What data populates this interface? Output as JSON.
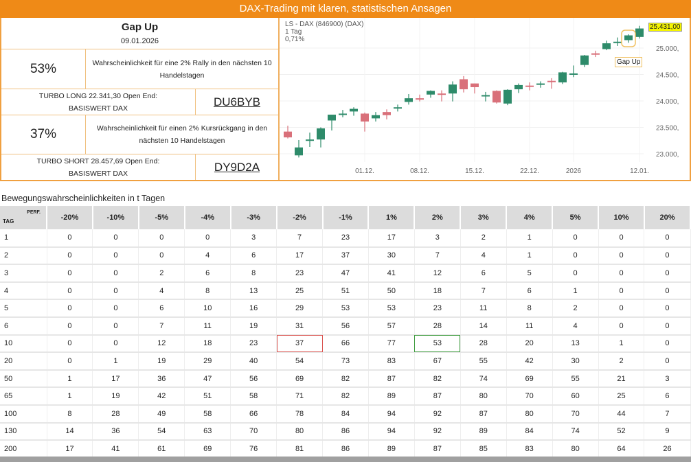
{
  "header": {
    "title": "DAX-Trading mit klaren, statistischen Ansagen"
  },
  "signal": {
    "title": "Gap Up",
    "date": "09.01.2026",
    "long": {
      "pct": "53%",
      "desc": "Wahrscheinlichkeit für eine 2% Rally in den nächsten 10 Handelstagen",
      "product": "TURBO LONG 22.341,30 Open End: BASISWERT DAX",
      "code": "DU6BYB"
    },
    "short": {
      "pct": "37%",
      "desc": "Wahrscheinlichkeit für einen 2% Kursrückgang in den nächsten 10 Handelstagen",
      "product": "TURBO SHORT 28.457,69 Open End: BASISWERT DAX",
      "code": "DY9D2A"
    }
  },
  "chart": {
    "name": "LS - DAX (846900) (DAX)",
    "period": "1 Tag",
    "change": "0,71%",
    "last_price": "25.431,00",
    "annotation": "Gap Up",
    "annotation_index": 31,
    "colors": {
      "up": "#2e8b6a",
      "down": "#d9707a"
    },
    "y_ticks": [
      {
        "v": 25000,
        "l": "25.000,"
      },
      {
        "v": 24500,
        "l": "24.500,"
      },
      {
        "v": 24000,
        "l": "24.000,"
      },
      {
        "v": 23500,
        "l": "23.500,"
      },
      {
        "v": 23000,
        "l": "23.000,"
      }
    ],
    "x_ticks": [
      {
        "i": 7,
        "l": "01.12."
      },
      {
        "i": 12,
        "l": "08.12."
      },
      {
        "i": 17,
        "l": "15.12."
      },
      {
        "i": 22,
        "l": "22.12."
      },
      {
        "i": 26,
        "l": "2026"
      },
      {
        "i": 32,
        "l": "12.01."
      }
    ],
    "ohlc": [
      [
        23420,
        23530,
        23290,
        23310
      ],
      [
        22970,
        23260,
        22930,
        23120
      ],
      [
        23250,
        23400,
        23130,
        23270
      ],
      [
        23270,
        23500,
        23120,
        23480
      ],
      [
        23630,
        23740,
        23440,
        23740
      ],
      [
        23740,
        23830,
        23690,
        23760
      ],
      [
        23800,
        23880,
        23720,
        23850
      ],
      [
        23760,
        23780,
        23420,
        23610
      ],
      [
        23670,
        23790,
        23610,
        23730
      ],
      [
        23790,
        23840,
        23650,
        23730
      ],
      [
        23860,
        23930,
        23800,
        23880
      ],
      [
        23980,
        24130,
        23930,
        24050
      ],
      [
        24050,
        24120,
        23990,
        24030
      ],
      [
        24120,
        24200,
        24060,
        24190
      ],
      [
        24140,
        24200,
        23990,
        24130
      ],
      [
        24140,
        24370,
        23990,
        24310
      ],
      [
        24410,
        24470,
        24160,
        24220
      ],
      [
        24330,
        24330,
        24140,
        24260
      ],
      [
        24100,
        24170,
        23990,
        24110
      ],
      [
        24190,
        24200,
        23950,
        23970
      ],
      [
        23950,
        24220,
        23920,
        24210
      ],
      [
        24220,
        24330,
        24150,
        24300
      ],
      [
        24290,
        24350,
        24200,
        24270
      ],
      [
        24310,
        24370,
        24250,
        24330
      ],
      [
        24380,
        24430,
        24230,
        24360
      ],
      [
        24350,
        24550,
        24320,
        24540
      ],
      [
        24500,
        24670,
        24450,
        24520
      ],
      [
        24680,
        24870,
        24640,
        24860
      ],
      [
        24900,
        24950,
        24830,
        24880
      ],
      [
        24980,
        25140,
        24960,
        25090
      ],
      [
        25100,
        25200,
        25040,
        25120
      ],
      [
        25150,
        25260,
        25100,
        25240
      ],
      [
        25210,
        25420,
        25180,
        25370
      ]
    ]
  },
  "table": {
    "title": "Bewegungswahrscheinlichkeiten in t Tagen",
    "tag_label": "TAG",
    "perf_label": "PERF.",
    "columns": [
      "-20%",
      "-10%",
      "-5%",
      "-4%",
      "-3%",
      "-2%",
      "-1%",
      "1%",
      "2%",
      "3%",
      "4%",
      "5%",
      "10%",
      "20%"
    ],
    "rows": [
      {
        "tag": "1",
        "v": [
          0,
          0,
          0,
          0,
          3,
          7,
          23,
          17,
          3,
          2,
          1,
          0,
          0,
          0
        ]
      },
      {
        "tag": "2",
        "v": [
          0,
          0,
          0,
          4,
          6,
          17,
          37,
          30,
          7,
          4,
          1,
          0,
          0,
          0
        ]
      },
      {
        "tag": "3",
        "v": [
          0,
          0,
          2,
          6,
          8,
          23,
          47,
          41,
          12,
          6,
          5,
          0,
          0,
          0
        ]
      },
      {
        "tag": "4",
        "v": [
          0,
          0,
          4,
          8,
          13,
          25,
          51,
          50,
          18,
          7,
          6,
          1,
          0,
          0
        ]
      },
      {
        "tag": "5",
        "v": [
          0,
          0,
          6,
          10,
          16,
          29,
          53,
          53,
          23,
          11,
          8,
          2,
          0,
          0
        ]
      },
      {
        "tag": "6",
        "v": [
          0,
          0,
          7,
          11,
          19,
          31,
          56,
          57,
          28,
          14,
          11,
          4,
          0,
          0
        ]
      },
      {
        "tag": "10",
        "v": [
          0,
          0,
          12,
          18,
          23,
          37,
          66,
          77,
          53,
          28,
          20,
          13,
          1,
          0
        ],
        "highlight": {
          "red": 5,
          "green": 8
        }
      },
      {
        "tag": "20",
        "v": [
          0,
          1,
          19,
          29,
          40,
          54,
          73,
          83,
          67,
          55,
          42,
          30,
          2,
          0
        ]
      },
      {
        "tag": "50",
        "v": [
          1,
          17,
          36,
          47,
          56,
          69,
          82,
          87,
          82,
          74,
          69,
          55,
          21,
          3
        ]
      },
      {
        "tag": "65",
        "v": [
          1,
          19,
          42,
          51,
          58,
          71,
          82,
          89,
          87,
          80,
          70,
          60,
          25,
          6
        ]
      },
      {
        "tag": "100",
        "v": [
          8,
          28,
          49,
          58,
          66,
          78,
          84,
          94,
          92,
          87,
          80,
          70,
          44,
          7
        ]
      },
      {
        "tag": "130",
        "v": [
          14,
          36,
          54,
          63,
          70,
          80,
          86,
          94,
          92,
          89,
          84,
          74,
          52,
          9
        ]
      },
      {
        "tag": "200",
        "v": [
          17,
          41,
          61,
          69,
          76,
          81,
          86,
          89,
          87,
          85,
          83,
          80,
          64,
          26
        ]
      }
    ]
  }
}
